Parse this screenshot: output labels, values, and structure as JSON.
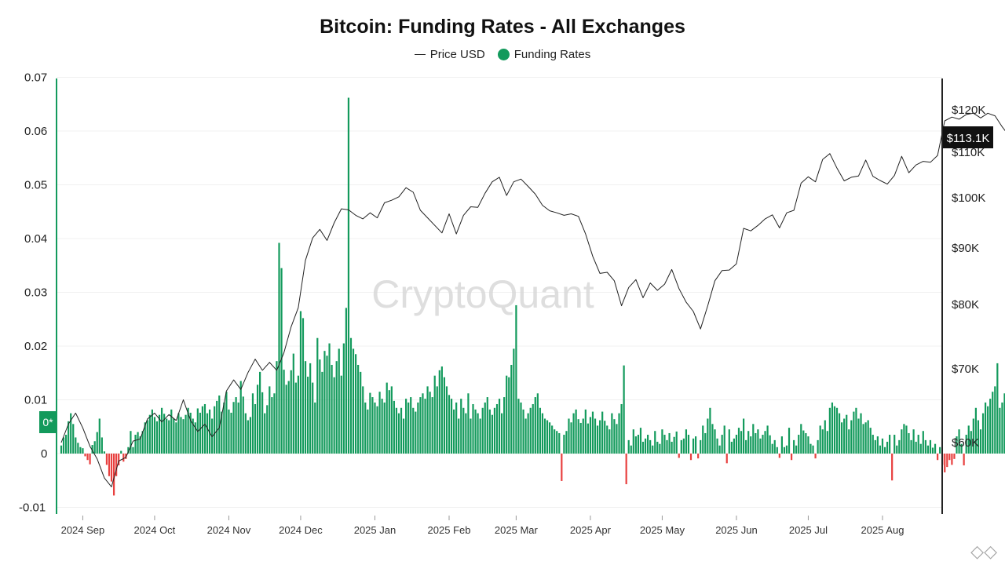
{
  "chart_data": {
    "type": "bar",
    "title": "Bitcoin: Funding Rates - All Exchanges",
    "legend": [
      {
        "name": "Price USD",
        "style": "line",
        "color": "#222222"
      },
      {
        "name": "Funding Rates",
        "style": "dot",
        "color": "#139a5c"
      }
    ],
    "legend_placement": "top-center",
    "left_axis": {
      "ticks": [
        "0.07",
        "0.06",
        "0.05",
        "0.04",
        "0.03",
        "0.02",
        "0.01",
        "0",
        "-0.01"
      ],
      "range": [
        -0.011,
        0.07
      ]
    },
    "right_axis": {
      "ticks": [
        "$120K",
        "$110K",
        "$100K",
        "$90K",
        "$80K",
        "$70K",
        "$60K"
      ],
      "range": [
        56000,
        126000
      ]
    },
    "x_ticks": [
      "2024 Sep",
      "2024 Oct",
      "2024 Nov",
      "2024 Dec",
      "2025 Jan",
      "2025 Feb",
      "2025 Mar",
      "2025 Apr",
      "2025 May",
      "2025 Jun",
      "2025 Jul",
      "2025 Aug"
    ],
    "zero_marker": "0*",
    "price_marker": "$113.1K",
    "grid": "horizontal",
    "colors": {
      "positive": "#139a5c",
      "negative": "#e8403f",
      "price_line": "#222222"
    },
    "funding_series": {
      "name": "Funding Rates",
      "start": "2024-08-23",
      "interval_days": 1,
      "values": [
        0.0015,
        0.003,
        0.0035,
        0.006,
        0.0075,
        0.0055,
        0.003,
        0.002,
        0.0012,
        0.001,
        -0.0005,
        -0.0012,
        -0.002,
        0.0016,
        0.0023,
        0.004,
        0.0065,
        0.003,
        0.0004,
        -0.0021,
        -0.0042,
        -0.0052,
        -0.0078,
        -0.0042,
        -0.0022,
        0.0005,
        -0.0015,
        -0.001,
        0.0012,
        0.0042,
        0.0012,
        0.0035,
        0.004,
        0.0032,
        0.0042,
        0.0058,
        0.0062,
        0.0072,
        0.0082,
        0.0068,
        0.006,
        0.0072,
        0.0085,
        0.0074,
        0.0065,
        0.0062,
        0.0082,
        0.0065,
        0.0058,
        0.0075,
        0.0068,
        0.0064,
        0.0072,
        0.0085,
        0.0076,
        0.0065,
        0.0058,
        0.0084,
        0.0076,
        0.0088,
        0.0092,
        0.0075,
        0.0082,
        0.0065,
        0.0088,
        0.0098,
        0.0108,
        0.0078,
        0.0095,
        0.0115,
        0.0082,
        0.0076,
        0.0096,
        0.0105,
        0.0095,
        0.0135,
        0.0106,
        0.0075,
        0.0062,
        0.0068,
        0.0112,
        0.0092,
        0.0128,
        0.0152,
        0.0114,
        0.0075,
        0.009,
        0.0125,
        0.0105,
        0.0112,
        0.0172,
        0.0392,
        0.0345,
        0.0156,
        0.0128,
        0.0135,
        0.0155,
        0.0186,
        0.0132,
        0.0145,
        0.0265,
        0.0252,
        0.0172,
        0.0143,
        0.0168,
        0.0132,
        0.0095,
        0.0215,
        0.0175,
        0.0152,
        0.0191,
        0.0182,
        0.0205,
        0.0165,
        0.0142,
        0.0172,
        0.0195,
        0.0145,
        0.0205,
        0.0271,
        0.0662,
        0.0215,
        0.0195,
        0.0185,
        0.0165,
        0.0152,
        0.0125,
        0.0095,
        0.0082,
        0.0113,
        0.0105,
        0.0095,
        0.0088,
        0.0115,
        0.0102,
        0.0095,
        0.0132,
        0.0118,
        0.0125,
        0.0098,
        0.0085,
        0.0075,
        0.0085,
        0.0065,
        0.0102,
        0.0095,
        0.0105,
        0.0085,
        0.0078,
        0.0095,
        0.0105,
        0.0112,
        0.0102,
        0.0125,
        0.0115,
        0.0105,
        0.0145,
        0.0125,
        0.0155,
        0.0162,
        0.0142,
        0.0125,
        0.0109,
        0.0102,
        0.0082,
        0.0095,
        0.0065,
        0.0102,
        0.0085,
        0.0075,
        0.0112,
        0.0065,
        0.0092,
        0.0082,
        0.0075,
        0.0065,
        0.0085,
        0.0095,
        0.0105,
        0.0082,
        0.0072,
        0.0085,
        0.0092,
        0.0102,
        0.0075,
        0.0105,
        0.0145,
        0.0142,
        0.0165,
        0.0195,
        0.0276,
        0.0102,
        0.0095,
        0.0082,
        0.0065,
        0.0075,
        0.0085,
        0.0092,
        0.0105,
        0.0112,
        0.0085,
        0.0075,
        0.0065,
        0.0062,
        0.0058,
        0.0052,
        0.0045,
        0.0042,
        0.0038,
        -0.0051,
        0.0035,
        0.0042,
        0.0065,
        0.0058,
        0.0075,
        0.0082,
        0.0064,
        0.0057,
        0.0065,
        0.0082,
        0.0056,
        0.0068,
        0.0078,
        0.0065,
        0.0052,
        0.0062,
        0.0078,
        0.0061,
        0.0052,
        0.0045,
        0.0075,
        0.0064,
        0.0055,
        0.0075,
        0.0092,
        0.0164,
        -0.0057,
        0.0025,
        0.0015,
        0.0045,
        0.0032,
        0.0035,
        0.0048,
        0.0022,
        0.0028,
        0.0035,
        0.0025,
        0.0015,
        0.0042,
        0.0022,
        0.0018,
        0.0045,
        0.0035,
        0.0025,
        0.0038,
        0.0022,
        0.0031,
        0.0041,
        -0.0008,
        0.0025,
        0.0028,
        0.0045,
        0.0035,
        -0.0012,
        0.0028,
        0.0032,
        -0.0009,
        0.0025,
        0.0052,
        0.0038,
        0.0065,
        0.0085,
        0.0055,
        0.0045,
        0.0028,
        0.0015,
        0.0035,
        0.0052,
        -0.0018,
        0.0045,
        0.0022,
        0.0028,
        0.0035,
        0.0048,
        0.0042,
        0.0065,
        0.0025,
        0.0042,
        0.0032,
        0.0055,
        0.0038,
        0.0045,
        0.0028,
        0.0035,
        0.0042,
        0.0052,
        0.0034,
        0.0018,
        0.0025,
        0.0012,
        -0.0008,
        0.0032,
        0.0012,
        0.0015,
        0.0048,
        -0.0012,
        0.0025,
        0.0015,
        0.0035,
        0.0055,
        0.0043,
        0.0038,
        0.0032,
        0.0018,
        0.0015,
        -0.0009,
        0.0025,
        0.0052,
        0.0045,
        0.0062,
        0.0042,
        0.0085,
        0.0095,
        0.0088,
        0.0085,
        0.0075,
        0.0058,
        0.0065,
        0.0072,
        0.0045,
        0.0062,
        0.0078,
        0.0085,
        0.0065,
        0.0075,
        0.0055,
        0.0058,
        0.0062,
        0.0048,
        0.0035,
        0.0025,
        0.0032,
        0.0015,
        0.0028,
        0.0012,
        0.0022,
        0.0035,
        -0.005,
        0.0035,
        0.0015,
        0.0025,
        0.0045,
        0.0055,
        0.0052,
        0.0038,
        0.0025,
        0.0045,
        0.0022,
        0.0035,
        0.0018,
        0.0042,
        0.0025,
        0.0015,
        0.0025,
        0.0011,
        0.0018,
        -0.0012,
        0.0012,
        -0.0021,
        -0.0035,
        -0.0025,
        -0.0012,
        -0.0021,
        -0.001,
        0.0032,
        0.0045,
        0.0018,
        -0.0022,
        0.0035,
        0.0052,
        0.0042,
        0.0065,
        0.0085,
        0.0062,
        0.0045,
        0.0075,
        0.0095,
        0.0088,
        0.0102,
        0.0115,
        0.0125,
        0.0168,
        0.0085,
        0.0095,
        0.0112,
        0.0105,
        0.0092,
        0.0105,
        0.0115,
        0.0098,
        0.0085,
        0.0108,
        0.0135,
        0.0105,
        0.0085,
        0.0095,
        0.0065,
        0.0102,
        0.0085,
        0.0095,
        0.0075,
        -0.0038,
        0.0025,
        0.0045,
        0.0035,
        0.0092,
        0.0085,
        0.0075,
        0.0095,
        0.0082,
        0.0098,
        0.0115,
        0.0112,
        0.0105,
        0.0108,
        0.0105,
        0.0085,
        0.0045,
        0.0025,
        0.0012,
        0.0058
      ]
    },
    "price_series": {
      "name": "Price USD",
      "start": "2024-08-23",
      "interval_days": 3,
      "values": [
        60000,
        62500,
        64000,
        62000,
        59500,
        57800,
        55200,
        54000,
        57500,
        58000,
        60200,
        60500,
        63200,
        64000,
        62800,
        63800,
        63000,
        65800,
        63000,
        61500,
        62500,
        60800,
        62000,
        67000,
        68500,
        67200,
        69500,
        71500,
        69800,
        71000,
        69800,
        72500,
        76500,
        79500,
        87800,
        92000,
        93700,
        91500,
        95000,
        97800,
        97600,
        96500,
        95800,
        97000,
        96000,
        99000,
        99500,
        100200,
        102200,
        101200,
        97500,
        96000,
        94500,
        93000,
        96800,
        92800,
        96500,
        98200,
        98100,
        101000,
        103500,
        104500,
        100500,
        103500,
        104100,
        102500,
        100800,
        98500,
        97400,
        97000,
        96500,
        96800,
        96300,
        92800,
        88500,
        85500,
        85700,
        84200,
        79800,
        83000,
        84400,
        81200,
        83800,
        82500,
        83600,
        86200,
        82800,
        80400,
        78900,
        76200,
        79800,
        84200,
        86000,
        86100,
        87200,
        93900,
        93400,
        94500,
        95800,
        96600,
        94000,
        97000,
        97500,
        103200,
        104600,
        103500,
        108400,
        109700,
        106500,
        103700,
        104500,
        104800,
        108300,
        104700,
        103800,
        103000,
        104900,
        109100,
        105500,
        107200,
        108000,
        107800,
        109300,
        117400,
        118300,
        117800,
        118900,
        119200,
        118100,
        119200,
        118600,
        116000,
        113800,
        114100,
        118000,
        119300,
        117200,
        123400,
        119000,
        117500,
        113100
      ]
    }
  }
}
